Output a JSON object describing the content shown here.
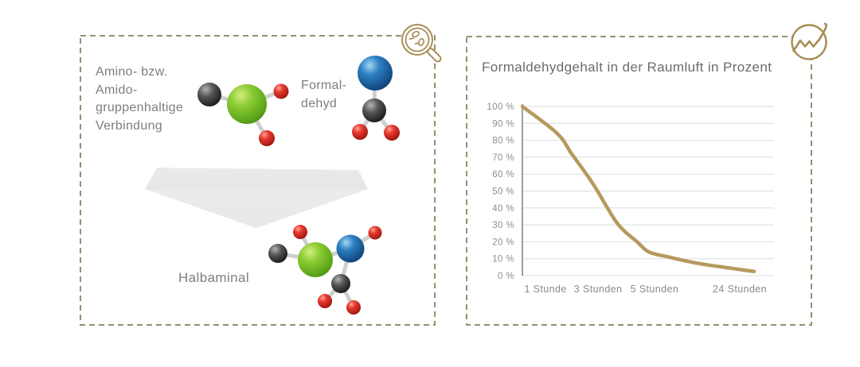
{
  "style": {
    "border_color": "#96906f",
    "accent_gold": "#a98d57",
    "text_gray": "#7e7e7e",
    "grid_color": "#dedede",
    "axis_color": "#9f9f9f",
    "arrow_gray": "#e5e5e5"
  },
  "panel_left": {
    "reactant_lines": [
      "Amino- bzw.",
      "Amido-",
      "gruppenhaltige",
      "Verbindung"
    ],
    "formaldehyde_lines": [
      "Formal-",
      "dehyd"
    ],
    "product_label": "Halbaminal",
    "icon": "magnifier-with-molecules",
    "atom_colors": {
      "carbon": "#2c2c2c",
      "oxygen": "#d32b22",
      "amine_green": "#7cc32a",
      "aldehyde_blue": "#2470b3"
    }
  },
  "panel_right": {
    "icon": "trend-line-chart"
  },
  "chart_data": {
    "type": "line",
    "title": "Formaldehydgehalt in der Raumluft in Prozent",
    "categories": [
      "1 Stunde",
      "3 Stunden",
      "5 Stunden",
      "24 Stunden"
    ],
    "values_at_categories": [
      86,
      50,
      13,
      3
    ],
    "start_value_percent": 100,
    "ylim": [
      0,
      100
    ],
    "y_tick_labels": [
      "100 %",
      "90 %",
      "80 %",
      "70 %",
      "60 %",
      "50 %",
      "40 %",
      "30 %",
      "20 %",
      "10 %",
      "0 %"
    ],
    "y_tick_values": [
      100,
      90,
      80,
      70,
      60,
      50,
      40,
      30,
      20,
      10,
      0
    ],
    "x_tick_positions": [
      0.092,
      0.301,
      0.525,
      0.864
    ],
    "grid": true,
    "legend": "none",
    "line_color": "#b6995f",
    "curve_points": [
      [
        0,
        100
      ],
      [
        0.139,
        84
      ],
      [
        0.196,
        72
      ],
      [
        0.282,
        54
      ],
      [
        0.377,
        31
      ],
      [
        0.456,
        20
      ],
      [
        0.503,
        14
      ],
      [
        0.582,
        11
      ],
      [
        0.709,
        7
      ],
      [
        0.921,
        2.5
      ]
    ]
  }
}
